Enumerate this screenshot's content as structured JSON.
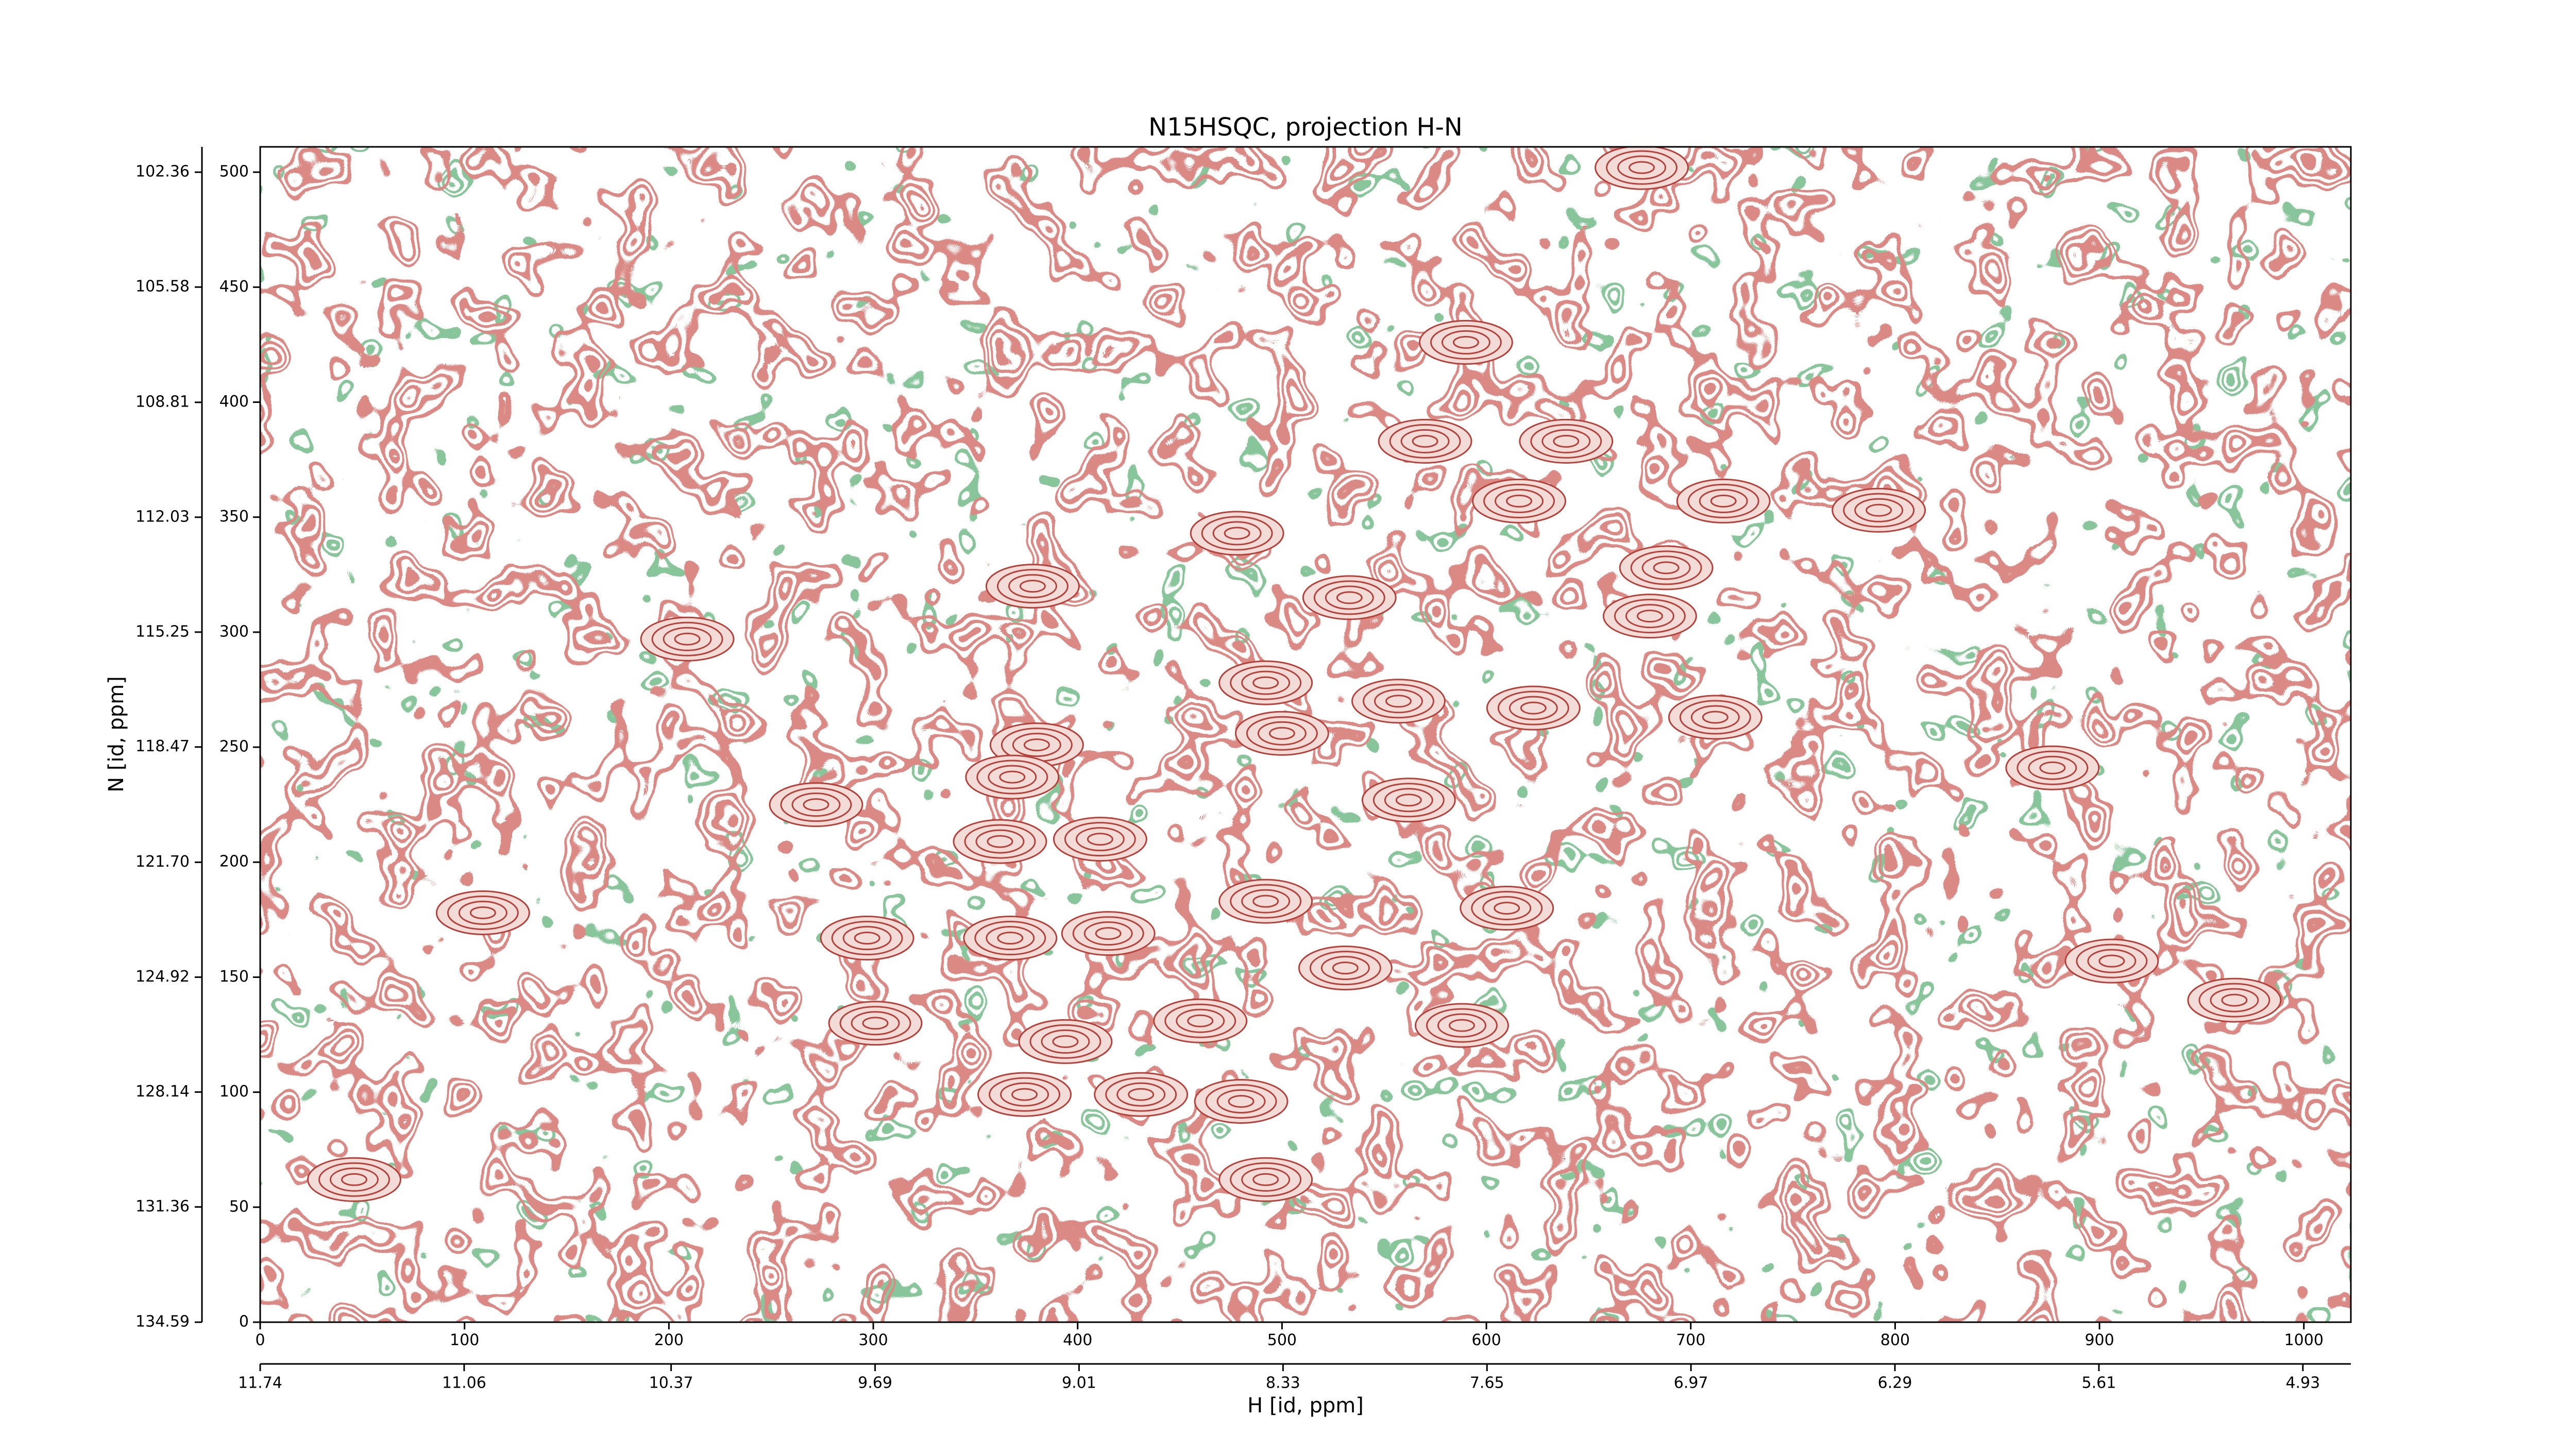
{
  "chart_data": {
    "type": "contour",
    "title": "N15HSQC, projection H-N",
    "xlabel": "H [id, ppm]",
    "ylabel": "N [id, ppm]",
    "xlim": [
      0,
      1023
    ],
    "xticks": [
      0,
      100,
      200,
      300,
      400,
      500,
      600,
      700,
      800,
      900,
      1000
    ],
    "ylim": [
      0,
      511
    ],
    "yticks": [
      0,
      50,
      100,
      150,
      200,
      250,
      300,
      350,
      400,
      450,
      500
    ],
    "x2lim": [
      11.74,
      4.77
    ],
    "x2ticks": [
      11.74,
      11.06,
      10.37,
      9.69,
      9.01,
      8.33,
      7.65,
      6.97,
      6.29,
      5.61,
      4.93
    ],
    "y2lim": [
      134.59,
      101.65
    ],
    "y2ticks": [
      134.59,
      131.36,
      128.14,
      124.92,
      {
        "value": 121.7,
        "label": "121.70"
      },
      118.47,
      115.25,
      112.03,
      108.81,
      105.58,
      102.36
    ],
    "color": "#b5413b",
    "negative_color": "#3f8f55",
    "series": [
      {
        "color": "#b5413b",
        "x": [
          46,
          109,
          209,
          272,
          297,
          301,
          367,
          378,
          380,
          368,
          362,
          411,
          415,
          394,
          374,
          431,
          478,
          492,
          500,
          492,
          480,
          492,
          460,
          533,
          557,
          562,
          531,
          570,
          590,
          588,
          610,
          616,
          623,
          639,
          688,
          716,
          680,
          712,
          792,
          877,
          966,
          906,
          676
        ],
        "y": [
          62,
          178,
          297,
          225,
          167,
          130,
          167,
          320,
          251,
          237,
          209,
          210,
          169,
          122,
          99,
          99,
          343,
          278,
          256,
          183,
          96,
          62,
          131,
          315,
          270,
          227,
          154,
          383,
          426,
          129,
          180,
          357,
          267,
          383,
          328,
          357,
          307,
          263,
          353,
          241,
          140,
          157,
          502
        ]
      }
    ]
  }
}
